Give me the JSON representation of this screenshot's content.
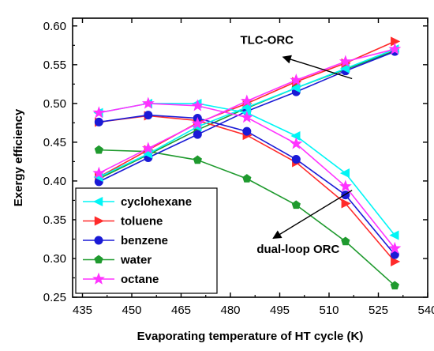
{
  "chart_data": {
    "type": "line",
    "title": "",
    "xlabel": "Evaporating temperature of HT cycle (K)",
    "ylabel": "Exergy efficiency",
    "xlim": [
      432,
      540
    ],
    "ylim": [
      0.25,
      0.61
    ],
    "xticks": [
      435,
      450,
      465,
      480,
      495,
      510,
      525,
      540
    ],
    "yticks": [
      0.25,
      0.3,
      0.35,
      0.4,
      0.45,
      0.5,
      0.55,
      0.6
    ],
    "x": [
      440,
      455,
      470,
      485,
      500,
      515,
      530
    ],
    "legend_position": "lower-left",
    "series": [
      {
        "name": "cyclohexane",
        "color": "#00f5f5",
        "marker": "triangle-left",
        "tlc_orc": [
          0.405,
          0.435,
          0.47,
          0.495,
          0.52,
          0.545,
          0.57
        ],
        "dual_loop_orc": [
          0.488,
          0.5,
          0.5,
          0.488,
          0.458,
          0.41,
          0.33
        ]
      },
      {
        "name": "toluene",
        "color": "#ff2a2a",
        "marker": "triangle-right",
        "tlc_orc": [
          0.405,
          0.44,
          0.475,
          0.5,
          0.528,
          0.552,
          0.58
        ],
        "dual_loop_orc": [
          0.476,
          0.484,
          0.478,
          0.459,
          0.424,
          0.371,
          0.296
        ]
      },
      {
        "name": "benzene",
        "color": "#1a1ad6",
        "marker": "circle",
        "tlc_orc": [
          0.399,
          0.43,
          0.46,
          0.49,
          0.515,
          0.542,
          0.567
        ],
        "dual_loop_orc": [
          0.476,
          0.485,
          0.481,
          0.464,
          0.428,
          0.382,
          0.305
        ]
      },
      {
        "name": "water",
        "color": "#1f9a2e",
        "marker": "pentagon",
        "tlc_orc": [
          0.403,
          0.434,
          0.466,
          0.494,
          0.52,
          0.544,
          0.568
        ],
        "dual_loop_orc": [
          0.44,
          0.438,
          0.427,
          0.403,
          0.369,
          0.322,
          0.265
        ]
      },
      {
        "name": "octane",
        "color": "#ff33ff",
        "marker": "star",
        "tlc_orc": [
          0.41,
          0.442,
          0.474,
          0.503,
          0.53,
          0.554,
          0.57
        ],
        "dual_loop_orc": [
          0.488,
          0.5,
          0.497,
          0.482,
          0.448,
          0.393,
          0.313
        ]
      }
    ],
    "annotations": [
      {
        "text": "TLC-ORC",
        "x": 483,
        "y": 0.577,
        "arrow_from": [
          517,
          0.532
        ],
        "arrow_to": [
          496,
          0.56
        ]
      },
      {
        "text": "dual-loop ORC",
        "x": 488,
        "y": 0.307,
        "arrow_from": [
          517,
          0.388
        ],
        "arrow_to": [
          493,
          0.326
        ]
      }
    ]
  }
}
